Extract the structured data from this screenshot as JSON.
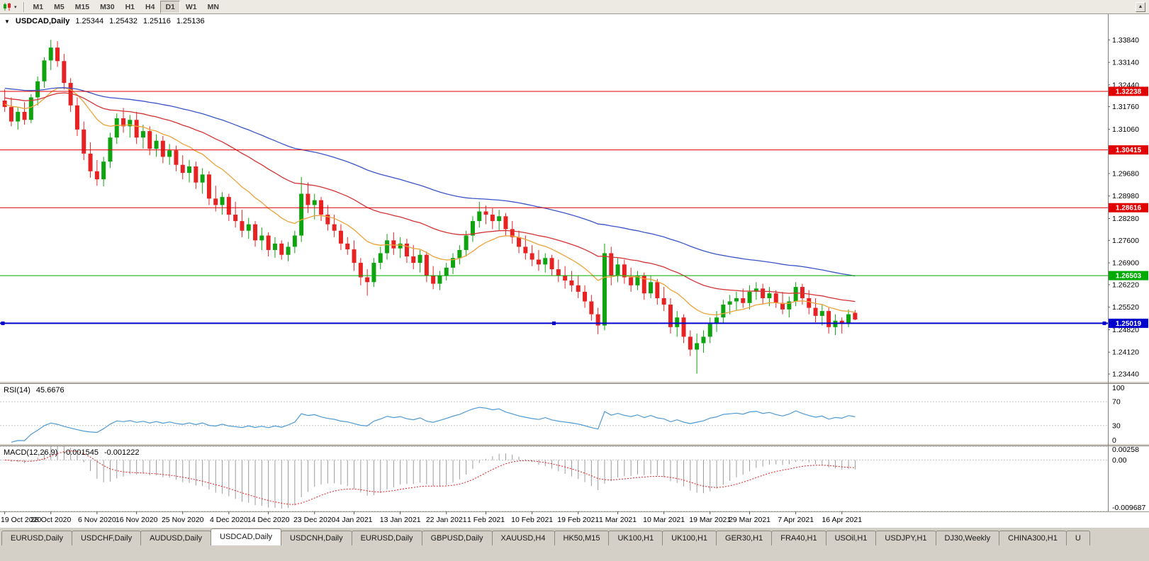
{
  "toolbar": {
    "timeframes": [
      "M1",
      "M5",
      "M15",
      "M30",
      "H1",
      "H4",
      "D1",
      "W1",
      "MN"
    ],
    "active_timeframe": "D1",
    "dropdown_caret": "▾",
    "scroll_up_icon": "▲"
  },
  "chart": {
    "header": {
      "caret": "▼",
      "symbol": "USDCAD,Daily",
      "open": "1.25344",
      "high": "1.25432",
      "low": "1.25116",
      "close": "1.25136"
    }
  },
  "price_axis": {
    "labels": [
      "1.33840",
      "1.33140",
      "1.32440",
      "1.31760",
      "1.31060",
      "1.29680",
      "1.28980",
      "1.28280",
      "1.27600",
      "1.26900",
      "1.26220",
      "1.25520",
      "1.24820",
      "1.24120",
      "1.23440"
    ]
  },
  "chart_data": {
    "type": "candlestick",
    "symbol": "USDCAD",
    "timeframe": "Daily",
    "price_range": [
      1.3464,
      1.2322
    ],
    "colors": {
      "up": "#0fa30f",
      "down": "#e62222"
    },
    "candles": [
      [
        1.3195,
        1.323,
        1.316,
        1.3175
      ],
      [
        1.3175,
        1.3205,
        1.3115,
        1.313
      ],
      [
        1.313,
        1.3175,
        1.3105,
        1.316
      ],
      [
        1.316,
        1.319,
        1.312,
        1.3135
      ],
      [
        1.3135,
        1.3215,
        1.3125,
        1.3205
      ],
      [
        1.3205,
        1.327,
        1.318,
        1.3255
      ],
      [
        1.3255,
        1.333,
        1.3235,
        1.332
      ],
      [
        1.332,
        1.3384,
        1.329,
        1.336
      ],
      [
        1.336,
        1.338,
        1.33,
        1.3318
      ],
      [
        1.3318,
        1.334,
        1.323,
        1.325
      ],
      [
        1.325,
        1.3265,
        1.316,
        1.318
      ],
      [
        1.318,
        1.3205,
        1.3085,
        1.3105
      ],
      [
        1.3105,
        1.313,
        1.301,
        1.303
      ],
      [
        1.303,
        1.3065,
        1.2955,
        1.2975
      ],
      [
        1.2975,
        1.301,
        1.293,
        1.295
      ],
      [
        1.295,
        1.302,
        1.2928,
        1.3005
      ],
      [
        1.3005,
        1.3095,
        1.2985,
        1.308
      ],
      [
        1.308,
        1.3155,
        1.306,
        1.314
      ],
      [
        1.314,
        1.3172,
        1.3095,
        1.3115
      ],
      [
        1.3115,
        1.315,
        1.308,
        1.3135
      ],
      [
        1.3135,
        1.316,
        1.306,
        1.308
      ],
      [
        1.308,
        1.312,
        1.3045,
        1.31
      ],
      [
        1.31,
        1.3115,
        1.3025,
        1.3045
      ],
      [
        1.3045,
        1.309,
        1.302,
        1.307
      ],
      [
        1.307,
        1.3085,
        1.3,
        1.302
      ],
      [
        1.302,
        1.306,
        1.2995,
        1.304
      ],
      [
        1.304,
        1.3055,
        1.2975,
        1.2995
      ],
      [
        1.2995,
        1.3025,
        1.295,
        1.297
      ],
      [
        1.297,
        1.301,
        1.294,
        1.299
      ],
      [
        1.299,
        1.3005,
        1.292,
        1.294
      ],
      [
        1.294,
        1.2985,
        1.2905,
        1.2965
      ],
      [
        1.2965,
        1.2975,
        1.287,
        1.289
      ],
      [
        1.289,
        1.293,
        1.285,
        1.287
      ],
      [
        1.287,
        1.291,
        1.284,
        1.2895
      ],
      [
        1.2895,
        1.2905,
        1.282,
        1.284
      ],
      [
        1.284,
        1.288,
        1.28,
        1.282
      ],
      [
        1.282,
        1.2855,
        1.277,
        1.279
      ],
      [
        1.279,
        1.283,
        1.2765,
        1.281
      ],
      [
        1.281,
        1.282,
        1.274,
        1.276
      ],
      [
        1.276,
        1.28,
        1.273,
        1.2775
      ],
      [
        1.2775,
        1.2785,
        1.271,
        1.273
      ],
      [
        1.273,
        1.277,
        1.2706,
        1.275
      ],
      [
        1.275,
        1.276,
        1.27,
        1.2715
      ],
      [
        1.2715,
        1.2755,
        1.2695,
        1.274
      ],
      [
        1.274,
        1.279,
        1.272,
        1.2775
      ],
      [
        1.2775,
        1.2957,
        1.2755,
        1.2905
      ],
      [
        1.2905,
        1.294,
        1.2845,
        1.287
      ],
      [
        1.287,
        1.2905,
        1.2825,
        1.2885
      ],
      [
        1.2885,
        1.2895,
        1.282,
        1.284
      ],
      [
        1.284,
        1.287,
        1.279,
        1.281
      ],
      [
        1.281,
        1.284,
        1.277,
        1.279
      ],
      [
        1.279,
        1.281,
        1.273,
        1.275
      ],
      [
        1.275,
        1.277,
        1.2715,
        1.2732
      ],
      [
        1.2732,
        1.276,
        1.2665,
        1.269
      ],
      [
        1.269,
        1.2705,
        1.262,
        1.2645
      ],
      [
        1.2645,
        1.267,
        1.2588,
        1.263
      ],
      [
        1.263,
        1.2705,
        1.2615,
        1.269
      ],
      [
        1.269,
        1.274,
        1.267,
        1.272
      ],
      [
        1.272,
        1.278,
        1.27,
        1.276
      ],
      [
        1.276,
        1.2785,
        1.2715,
        1.2735
      ],
      [
        1.2735,
        1.277,
        1.2705,
        1.275
      ],
      [
        1.275,
        1.2765,
        1.269,
        1.271
      ],
      [
        1.271,
        1.2745,
        1.267,
        1.269
      ],
      [
        1.269,
        1.273,
        1.266,
        1.2715
      ],
      [
        1.2715,
        1.2725,
        1.263,
        1.265
      ],
      [
        1.265,
        1.268,
        1.2608,
        1.2625
      ],
      [
        1.2625,
        1.2665,
        1.2605,
        1.265
      ],
      [
        1.265,
        1.269,
        1.2635,
        1.2675
      ],
      [
        1.2675,
        1.272,
        1.2655,
        1.2705
      ],
      [
        1.2705,
        1.2745,
        1.2685,
        1.273
      ],
      [
        1.273,
        1.279,
        1.271,
        1.2775
      ],
      [
        1.2775,
        1.2835,
        1.2755,
        1.282
      ],
      [
        1.282,
        1.288,
        1.28,
        1.285
      ],
      [
        1.285,
        1.2868,
        1.281,
        1.284
      ],
      [
        1.284,
        1.286,
        1.2795,
        1.282
      ],
      [
        1.282,
        1.2855,
        1.279,
        1.2835
      ],
      [
        1.2835,
        1.2845,
        1.2775,
        1.2795
      ],
      [
        1.2795,
        1.282,
        1.275,
        1.277
      ],
      [
        1.277,
        1.279,
        1.272,
        1.274
      ],
      [
        1.274,
        1.2775,
        1.27,
        1.272
      ],
      [
        1.272,
        1.2745,
        1.268,
        1.27
      ],
      [
        1.27,
        1.273,
        1.2665,
        1.2685
      ],
      [
        1.2685,
        1.272,
        1.266,
        1.2705
      ],
      [
        1.2705,
        1.2715,
        1.265,
        1.267
      ],
      [
        1.267,
        1.27,
        1.263,
        1.265
      ],
      [
        1.265,
        1.268,
        1.261,
        1.2635
      ],
      [
        1.2635,
        1.2665,
        1.26,
        1.262
      ],
      [
        1.262,
        1.265,
        1.258,
        1.26
      ],
      [
        1.26,
        1.262,
        1.255,
        1.257
      ],
      [
        1.257,
        1.259,
        1.251,
        1.253
      ],
      [
        1.253,
        1.255,
        1.2468,
        1.2495
      ],
      [
        1.2495,
        1.275,
        1.248,
        1.272
      ],
      [
        1.272,
        1.274,
        1.262,
        1.265
      ],
      [
        1.265,
        1.2705,
        1.263,
        1.2685
      ],
      [
        1.2685,
        1.27,
        1.2625,
        1.2645
      ],
      [
        1.2645,
        1.2675,
        1.26,
        1.262
      ],
      [
        1.262,
        1.2665,
        1.2605,
        1.265
      ],
      [
        1.265,
        1.266,
        1.2575,
        1.2595
      ],
      [
        1.2595,
        1.265,
        1.258,
        1.263
      ],
      [
        1.263,
        1.264,
        1.256,
        1.258
      ],
      [
        1.258,
        1.2615,
        1.254,
        1.256
      ],
      [
        1.256,
        1.258,
        1.247,
        1.249
      ],
      [
        1.249,
        1.254,
        1.246,
        1.252
      ],
      [
        1.252,
        1.253,
        1.244,
        1.246
      ],
      [
        1.246,
        1.248,
        1.24,
        1.242
      ],
      [
        1.242,
        1.247,
        1.2345,
        1.244
      ],
      [
        1.244,
        1.248,
        1.241,
        1.246
      ],
      [
        1.246,
        1.252,
        1.244,
        1.25
      ],
      [
        1.25,
        1.254,
        1.2475,
        1.252
      ],
      [
        1.252,
        1.2575,
        1.25,
        1.256
      ],
      [
        1.256,
        1.259,
        1.253,
        1.257
      ],
      [
        1.257,
        1.26,
        1.254,
        1.258
      ],
      [
        1.258,
        1.261,
        1.255,
        1.2565
      ],
      [
        1.2565,
        1.262,
        1.2545,
        1.26
      ],
      [
        1.26,
        1.263,
        1.2575,
        1.261
      ],
      [
        1.261,
        1.2625,
        1.256,
        1.258
      ],
      [
        1.258,
        1.2615,
        1.2555,
        1.2595
      ],
      [
        1.2595,
        1.2605,
        1.255,
        1.2565
      ],
      [
        1.2565,
        1.26,
        1.253,
        1.2545
      ],
      [
        1.2545,
        1.2585,
        1.252,
        1.257
      ],
      [
        1.257,
        1.263,
        1.2555,
        1.2615
      ],
      [
        1.2615,
        1.2625,
        1.256,
        1.258
      ],
      [
        1.258,
        1.2605,
        1.253,
        1.255
      ],
      [
        1.255,
        1.258,
        1.2505,
        1.2525
      ],
      [
        1.2525,
        1.256,
        1.2495,
        1.254
      ],
      [
        1.254,
        1.255,
        1.247,
        1.249
      ],
      [
        1.249,
        1.253,
        1.2465,
        1.251
      ],
      [
        1.251,
        1.252,
        1.247,
        1.25
      ],
      [
        1.25,
        1.2545,
        1.249,
        1.253
      ],
      [
        1.25344,
        1.25432,
        1.25116,
        1.25136
      ]
    ],
    "date_labels": [
      {
        "label": "19 Oct 2020",
        "i": 0
      },
      {
        "label": "28 Oct 2020",
        "i": 7
      },
      {
        "label": "6 Nov 2020",
        "i": 14
      },
      {
        "label": "16 Nov 2020",
        "i": 20
      },
      {
        "label": "25 Nov 2020",
        "i": 27
      },
      {
        "label": "4 Dec 2020",
        "i": 34
      },
      {
        "label": "14 Dec 2020",
        "i": 40
      },
      {
        "label": "23 Dec 2020",
        "i": 47
      },
      {
        "label": "4 Jan 2021",
        "i": 53
      },
      {
        "label": "13 Jan 2021",
        "i": 60
      },
      {
        "label": "22 Jan 2021",
        "i": 67
      },
      {
        "label": "1 Feb 2021",
        "i": 73
      },
      {
        "label": "10 Feb 2021",
        "i": 80
      },
      {
        "label": "19 Feb 2021",
        "i": 87
      },
      {
        "label": "1 Mar 2021",
        "i": 93
      },
      {
        "label": "10 Mar 2021",
        "i": 100
      },
      {
        "label": "19 Mar 2021",
        "i": 107
      },
      {
        "label": "29 Mar 2021",
        "i": 113
      },
      {
        "label": "7 Apr 2021",
        "i": 120
      },
      {
        "label": "16 Apr 2021",
        "i": 127
      }
    ],
    "moving_averages": [
      {
        "period": 8,
        "color": "#eda33b",
        "seed": 1.3185
      },
      {
        "period": 20,
        "color": "#d43333",
        "seed": 1.3205
      },
      {
        "period": 40,
        "color": "#3a55c8",
        "seed": 1.3235
      }
    ],
    "hlines": [
      {
        "price": 1.32238,
        "label": "1.32238",
        "color": "#e00000",
        "width": 1,
        "selected": false
      },
      {
        "price": 1.30415,
        "label": "1.30415",
        "color": "#e00000",
        "width": 1,
        "selected": false
      },
      {
        "price": 1.28616,
        "label": "1.28616",
        "color": "#e00000",
        "width": 1,
        "selected": false
      },
      {
        "price": 1.26503,
        "label": "1.26503",
        "color": "#00aa00",
        "width": 1,
        "selected": false
      },
      {
        "price": 1.25019,
        "label": "1.25019",
        "color": "#0000cd",
        "width": 2,
        "selected": true
      }
    ]
  },
  "rsi": {
    "title": "RSI(14)",
    "value": "45.6676",
    "period": 14,
    "color": "#4e9ad4",
    "levels": [
      "100",
      "70",
      "30",
      "0"
    ],
    "dotted_levels": [
      70,
      30
    ]
  },
  "macd": {
    "title": "MACD(12,26,9)",
    "value_macd": "-0.001545",
    "value_signal": "-0.001222",
    "axis_labels": [
      "0.00258",
      "0.00",
      "-0.009687"
    ],
    "axis_values": [
      0.00258,
      0,
      -0.009687
    ],
    "scale_max": 0.0026,
    "scale_min": -0.0097,
    "hist_color": "#9a9a9a",
    "signal_color": "#e02020"
  },
  "tabs": {
    "items": [
      "EURUSD,Daily",
      "USDCHF,Daily",
      "AUDUSD,Daily",
      "USDCAD,Daily",
      "USDCNH,Daily",
      "EURUSD,Daily",
      "GBPUSD,Daily",
      "XAUUSD,H4",
      "HK50,M15",
      "UK100,H1",
      "UK100,H1",
      "GER30,H1",
      "FRA40,H1",
      "USOil,H1",
      "USDJPY,H1",
      "DJ30,Weekly",
      "CHINA300,H1",
      "U"
    ],
    "active_index": 3
  }
}
